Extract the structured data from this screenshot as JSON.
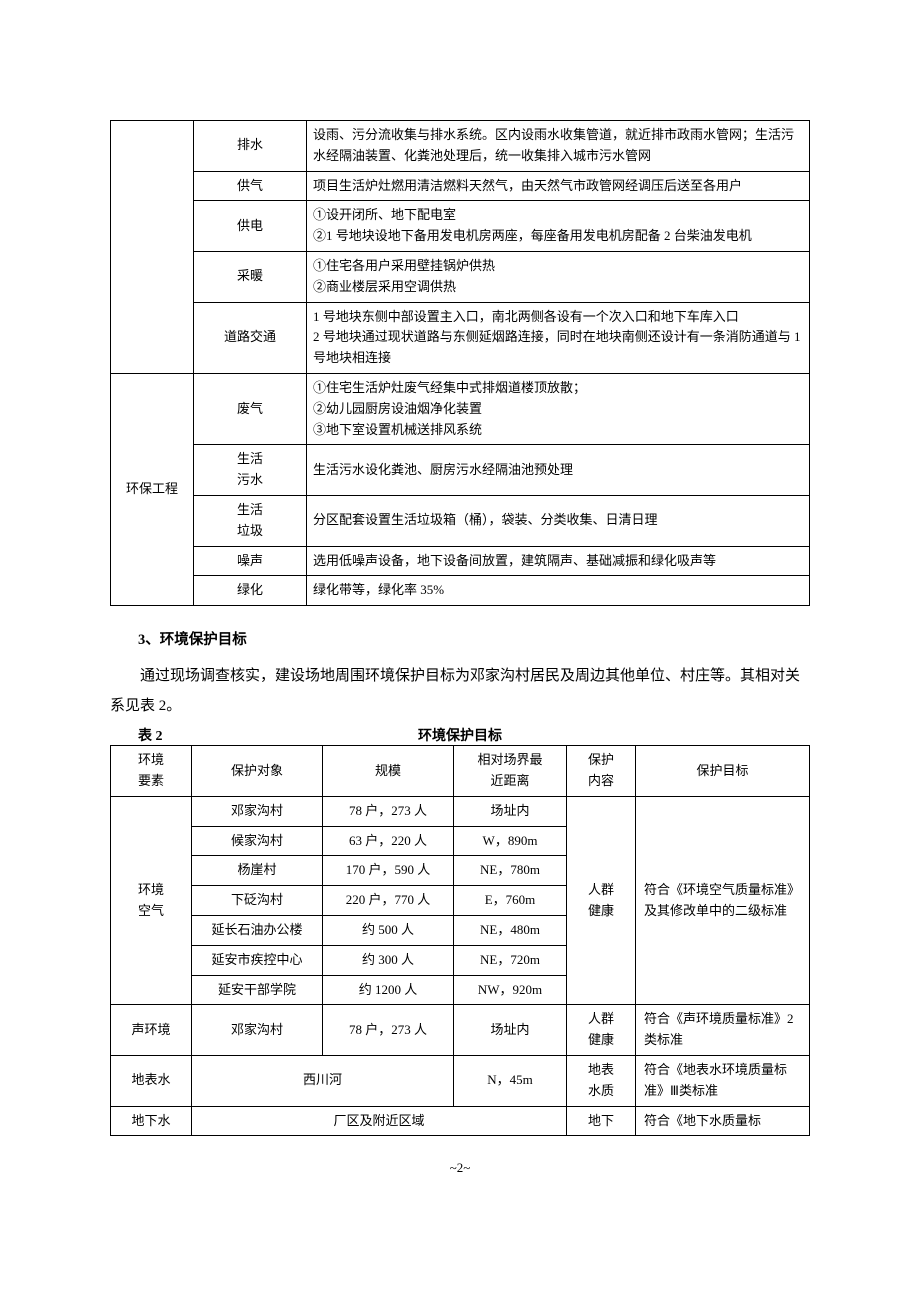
{
  "table1": {
    "group1_label": "",
    "rows_group1": [
      {
        "item": "排水",
        "desc": "设雨、污分流收集与排水系统。区内设雨水收集管道，就近排市政雨水管网；生活污水经隔油装置、化粪池处理后，统一收集排入城市污水管网"
      },
      {
        "item": "供气",
        "desc": "项目生活炉灶燃用清洁燃料天然气，由天然气市政管网经调压后送至各用户"
      },
      {
        "item": "供电",
        "desc": "①设开闭所、地下配电室\n②1 号地块设地下备用发电机房两座，每座备用发电机房配备 2 台柴油发电机"
      },
      {
        "item": "采暖",
        "desc": "①住宅各用户采用壁挂锅炉供热\n②商业楼层采用空调供热"
      },
      {
        "item": "道路交通",
        "desc": "1 号地块东侧中部设置主入口，南北两侧各设有一个次入口和地下车库入口\n2 号地块通过现状道路与东侧延烟路连接，同时在地块南侧还设计有一条消防通道与 1 号地块相连接"
      }
    ],
    "group2_label": "环保工程",
    "rows_group2": [
      {
        "item": "废气",
        "desc": "①住宅生活炉灶废气经集中式排烟道楼顶放散；\n②幼儿园厨房设油烟净化装置\n③地下室设置机械送排风系统"
      },
      {
        "item": "生活\n污水",
        "desc": "生活污水设化粪池、厨房污水经隔油池预处理"
      },
      {
        "item": "生活\n垃圾",
        "desc": "分区配套设置生活垃圾箱（桶），袋装、分类收集、日清日理"
      },
      {
        "item": "噪声",
        "desc": "选用低噪声设备，地下设备间放置，建筑隔声、基础减振和绿化吸声等"
      },
      {
        "item": "绿化",
        "desc": "绿化带等，绿化率 35%"
      }
    ]
  },
  "section3": {
    "title": "3、环境保护目标",
    "para": "通过现场调查核实，建设场地周围环境保护目标为邓家沟村居民及周边其他单位、村庄等。其相对关系见表 2。",
    "caption_left": "表 2",
    "caption_center": "环境保护目标"
  },
  "table2": {
    "headers": [
      "环境\n要素",
      "保护对象",
      "规模",
      "相对场界最\n近距离",
      "保护\n内容",
      "保护目标"
    ],
    "air": {
      "element": "环境\n空气",
      "rows": [
        {
          "obj": "邓家沟村",
          "scale": "78 户，273 人",
          "dist": "场址内"
        },
        {
          "obj": "候家沟村",
          "scale": "63 户，220 人",
          "dist": "W，890m"
        },
        {
          "obj": "杨崖村",
          "scale": "170 户，590 人",
          "dist": "NE，780m"
        },
        {
          "obj": "下砭沟村",
          "scale": "220 户，770 人",
          "dist": "E，760m"
        },
        {
          "obj": "延长石油办公楼",
          "scale": "约 500 人",
          "dist": "NE，480m"
        },
        {
          "obj": "延安市疾控中心",
          "scale": "约 300 人",
          "dist": "NE，720m"
        },
        {
          "obj": "延安干部学院",
          "scale": "约 1200 人",
          "dist": "NW，920m"
        }
      ],
      "content": "人群\n健康",
      "target": "符合《环境空气质量标准》及其修改单中的二级标准"
    },
    "sound": {
      "element": "声环境",
      "obj": "邓家沟村",
      "scale": "78 户，273 人",
      "dist": "场址内",
      "content": "人群\n健康",
      "target": "符合《声环境质量标准》2 类标准"
    },
    "surface": {
      "element": "地表水",
      "obj": "西川河",
      "dist": "N，45m",
      "content": "地表\n水质",
      "target": "符合《地表水环境质量标准》Ⅲ类标准"
    },
    "ground": {
      "element": "地下水",
      "obj": "厂区及附近区域",
      "content": "地下",
      "target": "符合《地下水质量标"
    }
  },
  "page_number": "~2~"
}
